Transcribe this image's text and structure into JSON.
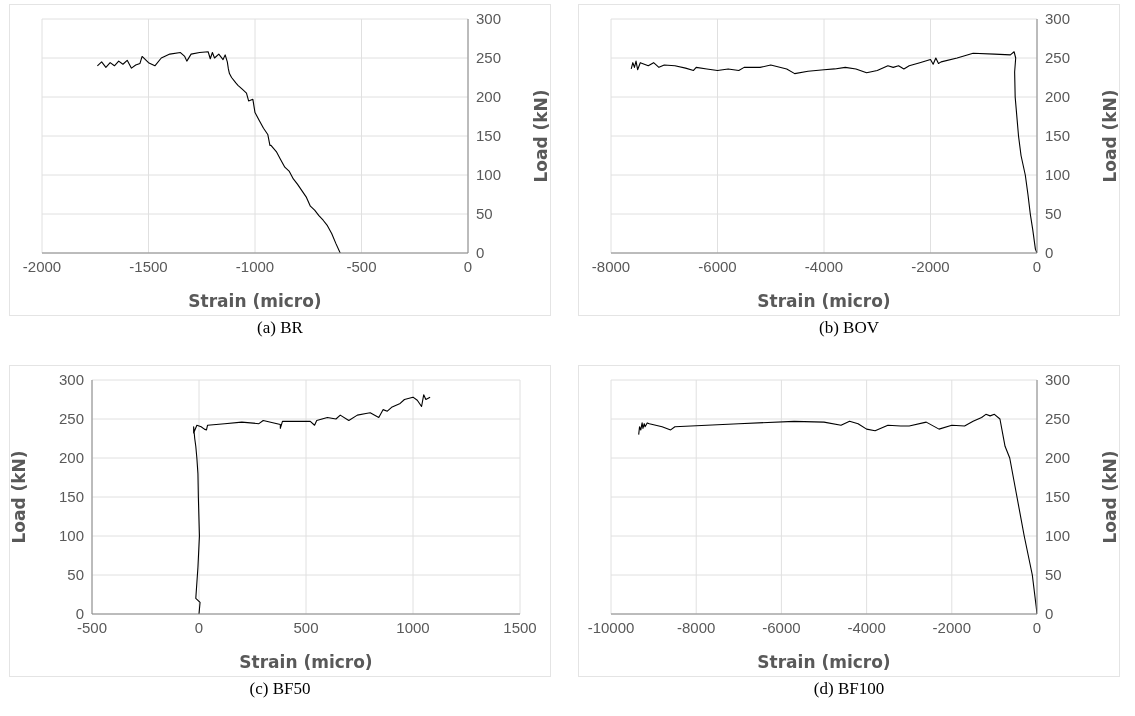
{
  "chart_data": [
    {
      "type": "line",
      "title": "(a) BR",
      "xlabel": "Strain (micro)",
      "ylabel": "Load (kN)",
      "color": "#000000",
      "marker": "none",
      "line_style": "solid",
      "grid": true,
      "xlim": [
        -2000,
        0
      ],
      "ylim": [
        0,
        300
      ],
      "xticks": [
        -2000,
        -1500,
        -1000,
        -500,
        0
      ],
      "yticks": [
        0,
        50,
        100,
        150,
        200,
        250,
        300
      ],
      "x": [
        -1740,
        -1720,
        -1700,
        -1680,
        -1660,
        -1640,
        -1620,
        -1600,
        -1580,
        -1560,
        -1540,
        -1530,
        -1500,
        -1470,
        -1440,
        -1400,
        -1350,
        -1330,
        -1320,
        -1300,
        -1260,
        -1220,
        -1210,
        -1200,
        -1190,
        -1170,
        -1150,
        -1140,
        -1130,
        -1125,
        -1120,
        -1110,
        -1090,
        -1080,
        -1060,
        -1040,
        -1030,
        -1010,
        -1000,
        -980,
        -960,
        -940,
        -930,
        -925,
        -900,
        -880,
        -860,
        -840,
        -820,
        -800,
        -780,
        -760,
        -740,
        -720,
        -700,
        -680,
        -660,
        -640,
        -620,
        -600
      ],
      "values": [
        240,
        245,
        238,
        244,
        240,
        246,
        242,
        247,
        237,
        241,
        243,
        252,
        244,
        240,
        250,
        255,
        257,
        252,
        246,
        255,
        257,
        258,
        249,
        257,
        250,
        255,
        248,
        254,
        245,
        236,
        230,
        225,
        218,
        215,
        210,
        205,
        195,
        197,
        180,
        170,
        160,
        152,
        138,
        138,
        130,
        120,
        110,
        105,
        95,
        88,
        80,
        72,
        60,
        55,
        48,
        42,
        35,
        25,
        12,
        0
      ]
    },
    {
      "type": "line",
      "title": "(b) BOV",
      "xlabel": "Strain (micro)",
      "ylabel": "Load (kN)",
      "color": "#000000",
      "marker": "none",
      "line_style": "solid",
      "grid": true,
      "xlim": [
        -8000,
        0
      ],
      "ylim": [
        0,
        300
      ],
      "xticks": [
        -8000,
        -6000,
        -4000,
        -2000,
        0
      ],
      "yticks": [
        0,
        50,
        100,
        150,
        200,
        250,
        300
      ],
      "x": [
        -7620,
        -7590,
        -7560,
        -7530,
        -7500,
        -7450,
        -7300,
        -7200,
        -7100,
        -7000,
        -6800,
        -6600,
        -6450,
        -6400,
        -6200,
        -6000,
        -5800,
        -5600,
        -5500,
        -5200,
        -5000,
        -4700,
        -4550,
        -4300,
        -4000,
        -3800,
        -3600,
        -3400,
        -3200,
        -3000,
        -2800,
        -2700,
        -2600,
        -2500,
        -2400,
        -2200,
        -2000,
        -1950,
        -1900,
        -1850,
        -1800,
        -1500,
        -1200,
        -800,
        -500,
        -430,
        -400,
        -420,
        -410,
        -347,
        -300,
        -220,
        -170,
        -126,
        -80,
        -30,
        0
      ],
      "values": [
        236,
        244,
        238,
        246,
        235,
        244,
        240,
        244,
        238,
        241,
        240,
        237,
        234,
        238,
        236,
        234,
        236,
        234,
        238,
        238,
        241,
        236,
        230,
        233,
        235,
        236,
        238,
        236,
        231,
        234,
        240,
        238,
        240,
        236,
        240,
        244,
        248,
        242,
        250,
        243,
        245,
        250,
        256,
        255,
        254,
        258,
        250,
        232,
        200,
        150,
        125,
        100,
        75,
        50,
        30,
        5,
        0
      ]
    },
    {
      "type": "line",
      "title": "(c) BF50",
      "xlabel": "Strain (micro)",
      "ylabel": "Load (kN)",
      "color": "#000000",
      "marker": "none",
      "line_style": "solid",
      "grid": true,
      "xlim": [
        -500,
        1500
      ],
      "ylim": [
        0,
        300
      ],
      "xticks": [
        -500,
        0,
        500,
        1000,
        1500
      ],
      "yticks": [
        0,
        50,
        100,
        150,
        200,
        250,
        300
      ],
      "x": [
        0,
        5,
        -15,
        -5,
        2,
        -3,
        -5,
        -10,
        -15,
        -20,
        -25,
        -25,
        -10,
        10,
        25,
        35,
        40,
        120,
        200,
        280,
        300,
        380,
        380,
        390,
        480,
        520,
        540,
        550,
        600,
        640,
        660,
        700,
        740,
        780,
        800,
        840,
        860,
        880,
        900,
        940,
        960,
        1000,
        1020,
        1040,
        1050,
        1060,
        1080
      ],
      "values": [
        0,
        15,
        20,
        60,
        100,
        150,
        180,
        200,
        215,
        225,
        240,
        232,
        242,
        240,
        237,
        236,
        242,
        244,
        246,
        244,
        248,
        243,
        238,
        247,
        247,
        247,
        242,
        248,
        252,
        250,
        255,
        248,
        255,
        257,
        258,
        252,
        262,
        260,
        265,
        270,
        275,
        278,
        274,
        266,
        281,
        275,
        278
      ]
    },
    {
      "type": "line",
      "title": "(d) BF100",
      "xlabel": "Strain (micro)",
      "ylabel": "Load (kN)",
      "color": "#000000",
      "marker": "none",
      "line_style": "solid",
      "grid": true,
      "xlim": [
        -10000,
        0
      ],
      "ylim": [
        0,
        300
      ],
      "xticks": [
        -10000,
        -8000,
        -6000,
        -4000,
        -2000,
        0
      ],
      "yticks": [
        0,
        50,
        100,
        150,
        200,
        250,
        300
      ],
      "x": [
        -9350,
        -9330,
        -9300,
        -9270,
        -9250,
        -9220,
        -9200,
        -9150,
        -9100,
        -8800,
        -8600,
        -8500,
        -7000,
        -5700,
        -5000,
        -4600,
        -4400,
        -4200,
        -4000,
        -3800,
        -3500,
        -3200,
        -3000,
        -2600,
        -2300,
        -2000,
        -1700,
        -1500,
        -1300,
        -1200,
        -1100,
        -1000,
        -870,
        -750,
        -640,
        -470,
        -300,
        -110,
        -20,
        0
      ],
      "values": [
        230,
        240,
        236,
        245,
        238,
        244,
        240,
        245,
        244,
        240,
        236,
        240,
        244,
        247,
        246,
        242,
        247,
        244,
        237,
        235,
        242,
        241,
        241,
        246,
        237,
        242,
        241,
        247,
        252,
        256,
        254,
        256,
        250,
        215,
        200,
        150,
        100,
        50,
        10,
        0
      ]
    }
  ]
}
